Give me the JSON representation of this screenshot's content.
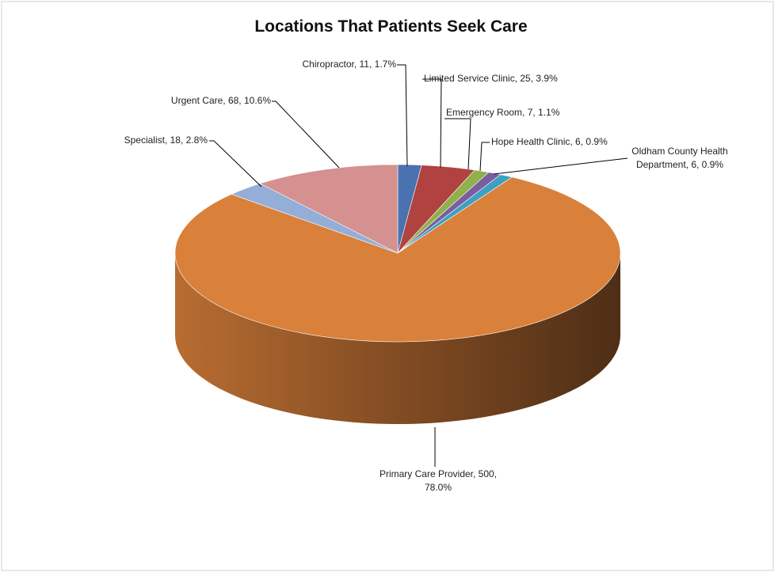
{
  "chart_data": {
    "type": "pie",
    "title": "Locations That Patients Seek Care",
    "categories": [
      "Chiropractor",
      "Limited Service Clinic",
      "Emergency Room",
      "Hope Health Clinic",
      "Oldham County Health Department",
      "Primary Care Provider",
      "Specialist",
      "Urgent Care"
    ],
    "values": [
      11,
      25,
      7,
      6,
      6,
      500,
      18,
      68
    ],
    "value_labels": [
      "Chiropractor, 11, 1.7%",
      "Limited Service Clinic, 25, 3.9%",
      "Emergency Room, 7, 1.1%",
      "Hope Health Clinic, 6, 0.9%",
      "Oldham County Health Department, 6, 0.9%",
      "Primary Care Provider, 500, 78.0%",
      "Specialist, 18, 2.8%",
      "Urgent Care, 68, 10.6%"
    ],
    "colors": [
      "#4a72b0",
      "#b04240",
      "#8fb04a",
      "#7a5ea0",
      "#3fa0c0",
      "#d9803a",
      "#95aed8",
      "#d59090"
    ]
  }
}
